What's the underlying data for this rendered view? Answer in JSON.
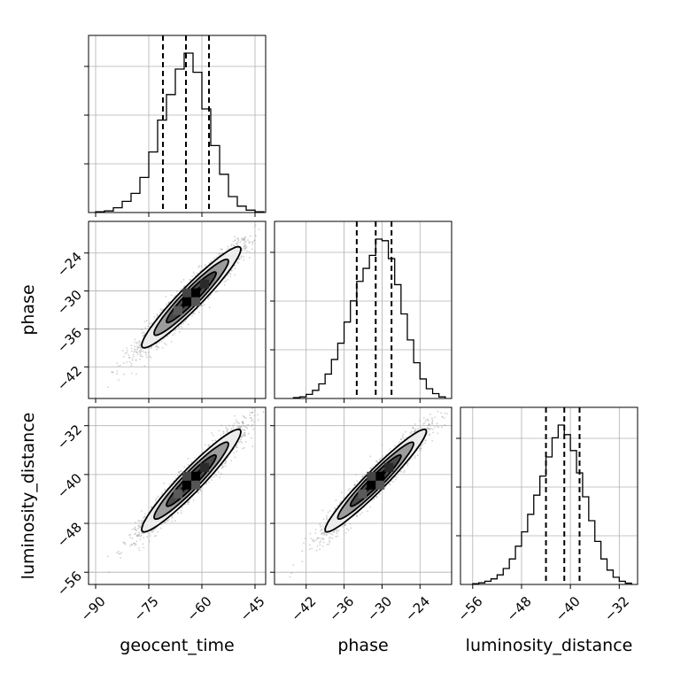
{
  "chart_data": {
    "type": "corner",
    "parameters": [
      "geocent_time",
      "phase",
      "luminosity_distance"
    ],
    "labels": {
      "geocent_time": "geocent_time",
      "phase": "phase",
      "luminosity_distance": "luminosity_distance"
    },
    "ranges": {
      "geocent_time": [
        -92,
        -42
      ],
      "phase": [
        -47,
        -19
      ],
      "luminosity_distance": [
        -58,
        -29
      ]
    },
    "ticks": {
      "geocent_time": [
        -90,
        -75,
        -60,
        -45
      ],
      "phase": [
        -42,
        -36,
        -30,
        -24
      ],
      "luminosity_distance": [
        -56,
        -48,
        -40,
        -32
      ]
    },
    "quantiles": {
      "geocent_time": [
        -71,
        -64.5,
        -58
      ],
      "phase": [
        -34,
        -31,
        -28.5
      ],
      "luminosity_distance": [
        -44,
        -41,
        -38.5
      ]
    },
    "histograms": {
      "geocent_time": {
        "bin_edges": [
          -90,
          -87.5,
          -85,
          -82.5,
          -80,
          -77.5,
          -75,
          -72.5,
          -70,
          -67.5,
          -65,
          -62.5,
          -60,
          -57.5,
          -55,
          -52.5,
          -50,
          -47.5,
          -45,
          -42.5
        ],
        "counts": [
          0.005,
          0.01,
          0.03,
          0.07,
          0.12,
          0.22,
          0.38,
          0.58,
          0.74,
          0.9,
          1.0,
          0.88,
          0.65,
          0.42,
          0.24,
          0.1,
          0.04,
          0.015,
          0.005
        ]
      },
      "phase": {
        "bin_edges": [
          -44,
          -43,
          -42,
          -41,
          -40,
          -39,
          -38,
          -37,
          -36,
          -35,
          -34,
          -33,
          -32,
          -31,
          -30,
          -29,
          -28,
          -27,
          -26,
          -25,
          -24,
          -23,
          -22,
          -21,
          -20
        ],
        "counts": [
          0.005,
          0.01,
          0.025,
          0.05,
          0.09,
          0.15,
          0.24,
          0.34,
          0.47,
          0.6,
          0.72,
          0.8,
          0.88,
          0.98,
          0.97,
          0.86,
          0.7,
          0.52,
          0.36,
          0.22,
          0.12,
          0.06,
          0.03,
          0.01
        ]
      },
      "luminosity_distance": {
        "bin_edges": [
          -56,
          -55,
          -54,
          -53,
          -52,
          -51,
          -50,
          -49,
          -48,
          -47,
          -46,
          -45,
          -44,
          -43,
          -42,
          -41,
          -40,
          -39,
          -38,
          -37,
          -36,
          -35,
          -34,
          -33,
          -32,
          -31,
          -30
        ],
        "counts": [
          0.005,
          0.01,
          0.02,
          0.035,
          0.06,
          0.1,
          0.16,
          0.24,
          0.33,
          0.44,
          0.56,
          0.68,
          0.8,
          0.92,
          1.0,
          0.94,
          0.84,
          0.7,
          0.55,
          0.4,
          0.27,
          0.16,
          0.09,
          0.045,
          0.02,
          0.008
        ]
      }
    },
    "joint_distributions": [
      {
        "x": "geocent_time",
        "y": "phase",
        "mean": [
          -63,
          -31
        ],
        "std": [
          7,
          4
        ],
        "correlation": 0.95
      },
      {
        "x": "geocent_time",
        "y": "luminosity_distance",
        "mean": [
          -63,
          -41
        ],
        "std": [
          7,
          4.2
        ],
        "correlation": 0.95
      },
      {
        "x": "phase",
        "y": "luminosity_distance",
        "mean": [
          -31,
          -41
        ],
        "std": [
          4,
          4.2
        ],
        "correlation": 0.96
      }
    ],
    "contour_levels_sigma": [
      0.5,
      1.0,
      1.5,
      2.0
    ],
    "grid": true,
    "colors": {
      "line": "#000000",
      "grid": "#b0b0b0",
      "scatter": "#9a9a9a",
      "fill_levels": [
        "#000000",
        "#4a4a4a",
        "#9c9c9c",
        "#ececec"
      ]
    }
  }
}
